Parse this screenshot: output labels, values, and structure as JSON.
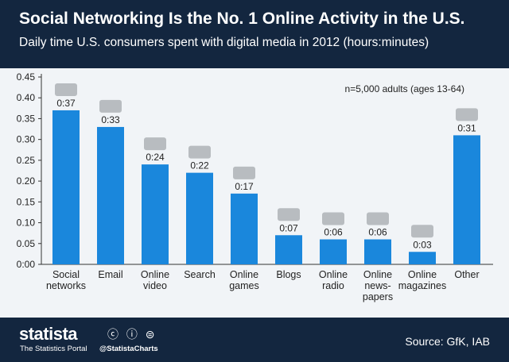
{
  "header": {
    "title": "Social Networking Is the No. 1 Online Activity in the U.S.",
    "subtitle": "Daily time U.S. consumers spent with digital media in 2012 (hours:minutes)"
  },
  "chart_data": {
    "type": "bar",
    "categories": [
      [
        "Social",
        "networks"
      ],
      [
        "Email"
      ],
      [
        "Online",
        "video"
      ],
      [
        "Search"
      ],
      [
        "Online",
        "games"
      ],
      [
        "Blogs"
      ],
      [
        "Online",
        "radio"
      ],
      [
        "Online",
        "news-",
        "papers"
      ],
      [
        "Online",
        "magazines"
      ],
      [
        "Other"
      ]
    ],
    "values": [
      0.37,
      0.33,
      0.24,
      0.22,
      0.17,
      0.07,
      0.06,
      0.06,
      0.03,
      0.31
    ],
    "data_labels": [
      "0:37",
      "0:33",
      "0:24",
      "0:22",
      "0:17",
      "0:07",
      "0:06",
      "0:06",
      "0:03",
      "0:31"
    ],
    "icons": [
      "people-icon",
      "envelope-icon",
      "clapperboard-icon",
      "magnifier-icon",
      "gamepad-icon",
      "pencil-icon",
      "music-note-icon",
      "newspaper-icon",
      "magazine-icon",
      "monitor-icon"
    ],
    "yticks": [
      "0:00",
      "0.05",
      "0.10",
      "0.15",
      "0.20",
      "0.25",
      "0.30",
      "0.35",
      "0.40",
      "0.45"
    ],
    "ylim": [
      0,
      0.45
    ],
    "grid": false,
    "annotation": "n=5,000 adults (ages 13-64)",
    "bar_color": "#1a87dc"
  },
  "footer": {
    "logo": "statista",
    "tagline": "The Statistics Portal",
    "handle": "@StatistaCharts",
    "license_icons": "ⓒ ⓘ ⊜",
    "source": "Source: GfK, IAB"
  }
}
